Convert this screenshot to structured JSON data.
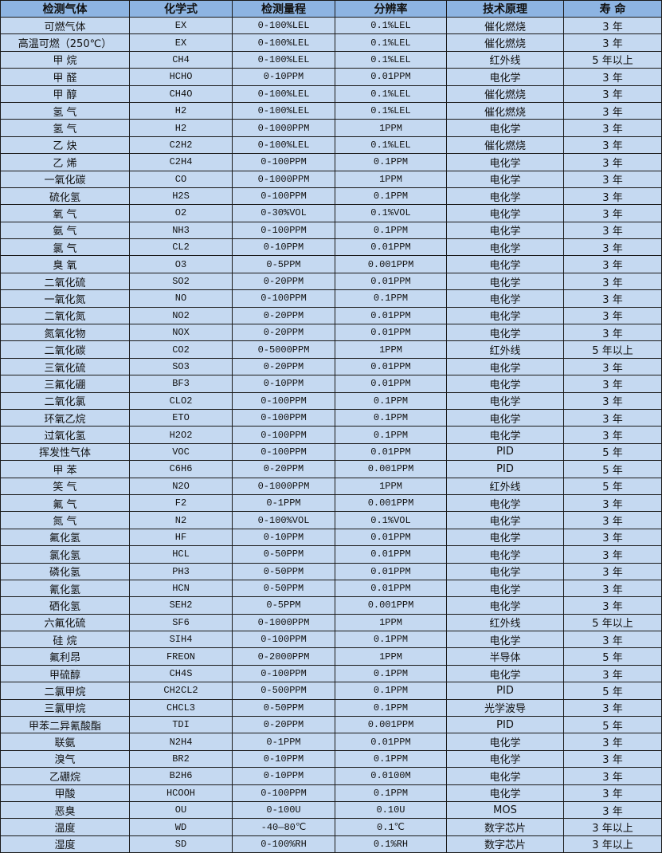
{
  "table": {
    "headers": [
      "检测气体",
      "化学式",
      "检测量程",
      "分辨率",
      "技术原理",
      "寿 命"
    ],
    "rows": [
      [
        "可燃气体",
        "EX",
        "0-100%LEL",
        "0.1%LEL",
        "催化燃烧",
        "3 年"
      ],
      [
        "高温可燃（250℃）",
        "EX",
        "0-100%LEL",
        "0.1%LEL",
        "催化燃烧",
        "3 年"
      ],
      [
        "甲 烷",
        "CH4",
        "0-100%LEL",
        "0.1%LEL",
        "红外线",
        "5 年以上"
      ],
      [
        "甲 醛",
        "HCHO",
        "0-10PPM",
        "0.01PPM",
        "电化学",
        "3 年"
      ],
      [
        "甲 醇",
        "CH4O",
        "0-100%LEL",
        "0.1%LEL",
        "催化燃烧",
        "3 年"
      ],
      [
        "氢 气",
        "H2",
        "0-100%LEL",
        "0.1%LEL",
        "催化燃烧",
        "3 年"
      ],
      [
        "氢 气",
        "H2",
        "0-1000PPM",
        "1PPM",
        "电化学",
        "3 年"
      ],
      [
        "乙 炔",
        "C2H2",
        "0-100%LEL",
        "0.1%LEL",
        "催化燃烧",
        "3 年"
      ],
      [
        "乙 烯",
        "C2H4",
        "0-100PPM",
        "0.1PPM",
        "电化学",
        "3 年"
      ],
      [
        "一氧化碳",
        "CO",
        "0-1000PPM",
        "1PPM",
        "电化学",
        "3 年"
      ],
      [
        "硫化氢",
        "H2S",
        "0-100PPM",
        "0.1PPM",
        "电化学",
        "3 年"
      ],
      [
        "氧 气",
        "O2",
        "0-30%VOL",
        "0.1%VOL",
        "电化学",
        "3 年"
      ],
      [
        "氨 气",
        "NH3",
        "0-100PPM",
        "0.1PPM",
        "电化学",
        "3 年"
      ],
      [
        "氯 气",
        "CL2",
        "0-10PPM",
        "0.01PPM",
        "电化学",
        "3 年"
      ],
      [
        "臭 氧",
        "O3",
        "0-5PPM",
        "0.001PPM",
        "电化学",
        "3 年"
      ],
      [
        "二氧化硫",
        "SO2",
        "0-20PPM",
        "0.01PPM",
        "电化学",
        "3 年"
      ],
      [
        "一氧化氮",
        "NO",
        "0-100PPM",
        "0.1PPM",
        "电化学",
        "3 年"
      ],
      [
        "二氧化氮",
        "NO2",
        "0-20PPM",
        "0.01PPM",
        "电化学",
        "3 年"
      ],
      [
        "氮氧化物",
        "NOX",
        "0-20PPM",
        "0.01PPM",
        "电化学",
        "3 年"
      ],
      [
        "二氧化碳",
        "CO2",
        "0-5000PPM",
        "1PPM",
        "红外线",
        "5 年以上"
      ],
      [
        "三氧化硫",
        "SO3",
        "0-20PPM",
        "0.01PPM",
        "电化学",
        "3 年"
      ],
      [
        "三氟化硼",
        "BF3",
        "0-10PPM",
        "0.01PPM",
        "电化学",
        "3 年"
      ],
      [
        "二氧化氯",
        "CLO2",
        "0-100PPM",
        "0.1PPM",
        "电化学",
        "3 年"
      ],
      [
        "环氧乙烷",
        "ETO",
        "0-100PPM",
        "0.1PPM",
        "电化学",
        "3 年"
      ],
      [
        "过氧化氢",
        "H2O2",
        "0-100PPM",
        "0.1PPM",
        "电化学",
        "3 年"
      ],
      [
        "挥发性气体",
        "VOC",
        "0-100PPM",
        "0.01PPM",
        "PID",
        "5 年"
      ],
      [
        "甲 苯",
        "C6H6",
        "0-20PPM",
        "0.001PPM",
        "PID",
        "5 年"
      ],
      [
        "笑 气",
        "N2O",
        "0-1000PPM",
        "1PPM",
        "红外线",
        "5 年"
      ],
      [
        "氟 气",
        "F2",
        "0-1PPM",
        "0.001PPM",
        "电化学",
        "3 年"
      ],
      [
        "氮 气",
        "N2",
        "0-100%VOL",
        "0.1%VOL",
        "电化学",
        "3 年"
      ],
      [
        "氟化氢",
        "HF",
        "0-10PPM",
        "0.01PPM",
        "电化学",
        "3 年"
      ],
      [
        "氯化氢",
        "HCL",
        "0-50PPM",
        "0.01PPM",
        "电化学",
        "3 年"
      ],
      [
        "磷化氢",
        "PH3",
        "0-50PPM",
        "0.01PPM",
        "电化学",
        "3 年"
      ],
      [
        "氰化氢",
        "HCN",
        "0-50PPM",
        "0.01PPM",
        "电化学",
        "3 年"
      ],
      [
        "硒化氢",
        "SEH2",
        "0-5PPM",
        "0.001PPM",
        "电化学",
        "3 年"
      ],
      [
        "六氟化硫",
        "SF6",
        "0-1000PPM",
        "1PPM",
        "红外线",
        "5 年以上"
      ],
      [
        "硅 烷",
        "SIH4",
        "0-100PPM",
        "0.1PPM",
        "电化学",
        "3 年"
      ],
      [
        "氟利昂",
        "FREON",
        "0-2000PPM",
        "1PPM",
        "半导体",
        "5 年"
      ],
      [
        "甲硫醇",
        "CH4S",
        "0-100PPM",
        "0.1PPM",
        "电化学",
        "3 年"
      ],
      [
        "二氯甲烷",
        "CH2CL2",
        "0-500PPM",
        "0.1PPM",
        "PID",
        "5 年"
      ],
      [
        "三氯甲烷",
        "CHCL3",
        "0-50PPM",
        "0.1PPM",
        "光学波导",
        "3 年"
      ],
      [
        "甲苯二异氰酸酯",
        "TDI",
        "0-20PPM",
        "0.001PPM",
        "PID",
        "5 年"
      ],
      [
        "联氨",
        "N2H4",
        "0-1PPM",
        "0.01PPM",
        "电化学",
        "3 年"
      ],
      [
        "溴气",
        "BR2",
        "0-10PPM",
        "0.1PPM",
        "电化学",
        "3 年"
      ],
      [
        "乙硼烷",
        "B2H6",
        "0-10PPM",
        "0.0100M",
        "电化学",
        "3 年"
      ],
      [
        "甲酸",
        "HCOOH",
        "0-100PPM",
        "0.1PPM",
        "电化学",
        "3 年"
      ],
      [
        "恶臭",
        "OU",
        "0-100U",
        "0.10U",
        "MOS",
        "3 年"
      ],
      [
        "温度",
        "WD",
        "-40—80℃",
        "0.1℃",
        "数字芯片",
        "3 年以上"
      ],
      [
        "湿度",
        "SD",
        "0-100%RH",
        "0.1%RH",
        "数字芯片",
        "3 年以上"
      ]
    ]
  },
  "colors": {
    "header_bg": "#8db4e2",
    "row_bg": "#c5d9f1",
    "border": "#1a1a1a"
  }
}
